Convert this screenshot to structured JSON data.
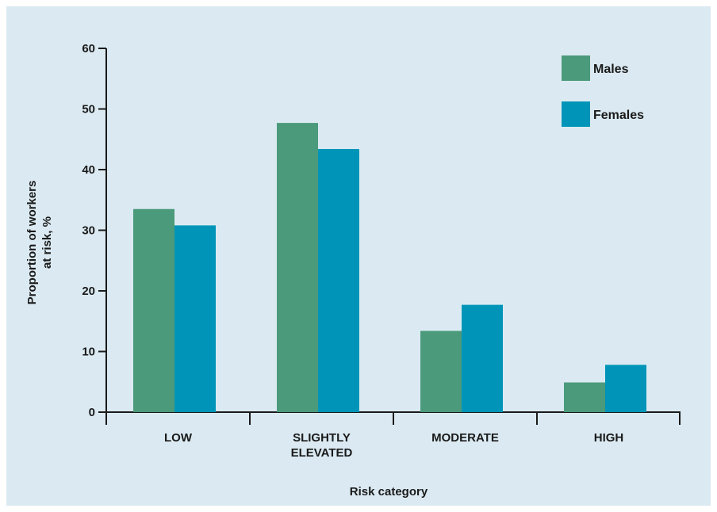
{
  "chart_data": {
    "type": "bar",
    "categories": [
      [
        "LOW"
      ],
      [
        "SLIGHTLY",
        "ELEVATED"
      ],
      [
        "MODERATE"
      ],
      [
        "HIGH"
      ]
    ],
    "series": [
      {
        "name": "Males",
        "color": "#4a9a7b",
        "values": [
          33.5,
          47.7,
          13.4,
          4.9
        ]
      },
      {
        "name": "Females",
        "color": "#0095b8",
        "values": [
          30.8,
          43.4,
          17.7,
          7.8
        ]
      }
    ],
    "yticks": [
      0,
      10,
      20,
      30,
      40,
      50,
      60
    ],
    "ylim": [
      0,
      60
    ],
    "xlabel": "Risk category",
    "ylabel": [
      "Proportion of workers",
      "at risk, %"
    ],
    "legend_position": "top-right",
    "grid": false
  }
}
